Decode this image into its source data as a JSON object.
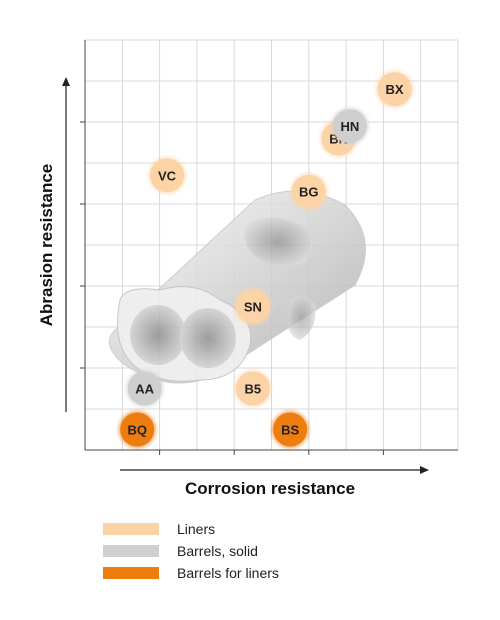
{
  "chart_data": {
    "type": "scatter",
    "xlabel": "Corrosion resistance",
    "ylabel": "Abrasion resistance",
    "xlim": [
      0,
      10
    ],
    "ylim": [
      0,
      10
    ],
    "grid": true,
    "legend_position": "bottom-left",
    "series": [
      {
        "name": "Liners",
        "color": "#fbd3a6",
        "points": [
          {
            "label": "BX",
            "x": 8.3,
            "y": 8.8
          },
          {
            "label": "BN",
            "x": 6.8,
            "y": 7.6
          },
          {
            "label": "VC",
            "x": 2.2,
            "y": 6.7
          },
          {
            "label": "BG",
            "x": 6.0,
            "y": 6.3
          },
          {
            "label": "SN",
            "x": 4.5,
            "y": 3.5
          },
          {
            "label": "B5",
            "x": 4.5,
            "y": 1.5
          }
        ]
      },
      {
        "name": "Barrels, solid",
        "color": "#cfcfcf",
        "points": [
          {
            "label": "HN",
            "x": 7.1,
            "y": 7.9
          },
          {
            "label": "AA",
            "x": 1.6,
            "y": 1.5
          }
        ]
      },
      {
        "name": "Barrels for liners",
        "color": "#ed7d0e",
        "points": [
          {
            "label": "BQ",
            "x": 1.4,
            "y": 0.5
          },
          {
            "label": "BS",
            "x": 5.5,
            "y": 0.5
          }
        ]
      }
    ]
  }
}
